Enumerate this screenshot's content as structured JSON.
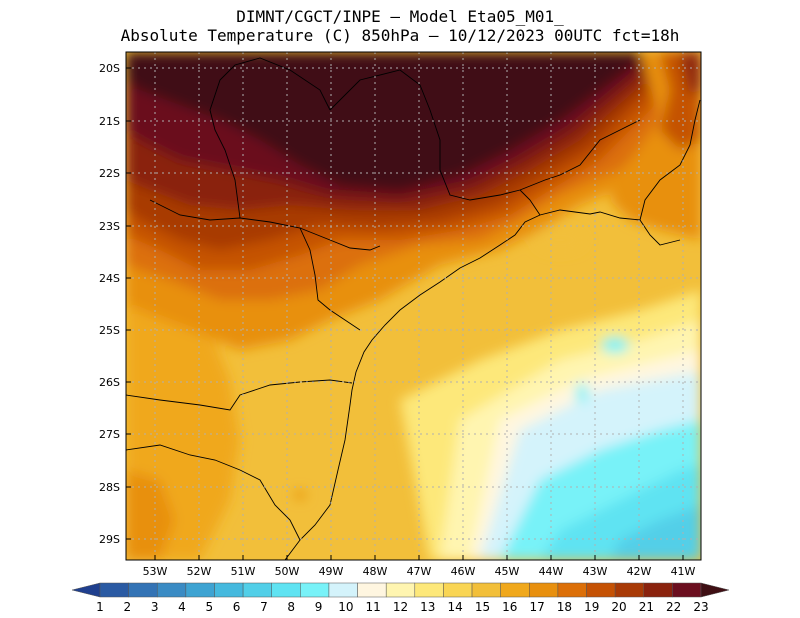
{
  "header": {
    "line1": "DIMNT/CGCT/INPE —  Model Eta05_M01_",
    "line2": "Absolute Temperature (C) 850hPa —  10/12/2023 00UTC fct=18h"
  },
  "map": {
    "lat_labels": [
      "20S",
      "21S",
      "22S",
      "23S",
      "24S",
      "25S",
      "26S",
      "27S",
      "28S",
      "29S"
    ],
    "lon_labels": [
      "53W",
      "52W",
      "51W",
      "50W",
      "49W",
      "48W",
      "47W",
      "46W",
      "45W",
      "44W",
      "43W",
      "42W",
      "41W"
    ],
    "lat_range": [
      -29.4,
      -19.7
    ],
    "lon_range": [
      -53.8,
      -40.7
    ],
    "field": "Absolute Temperature (C) 850hPa",
    "gridlines": "dotted"
  },
  "colorbar": {
    "labels": [
      "1",
      "2",
      "3",
      "4",
      "5",
      "6",
      "7",
      "8",
      "9",
      "10",
      "11",
      "12",
      "13",
      "14",
      "15",
      "16",
      "17",
      "18",
      "19",
      "20",
      "21",
      "22",
      "23"
    ],
    "colors": [
      "#1f3f8e",
      "#2a5aa3",
      "#3373b5",
      "#3a8bc4",
      "#3ea3d2",
      "#45b9de",
      "#52cfe8",
      "#5fe3f2",
      "#78f2f8",
      "#d4f3fb",
      "#fff6e0",
      "#fff5b0",
      "#fde87a",
      "#f9d554",
      "#f2bf3a",
      "#f0a81c",
      "#e8900f",
      "#dc6f08",
      "#c55204",
      "#a83a06",
      "#8a220d",
      "#6b0e1f",
      "#3f0f14"
    ]
  }
}
